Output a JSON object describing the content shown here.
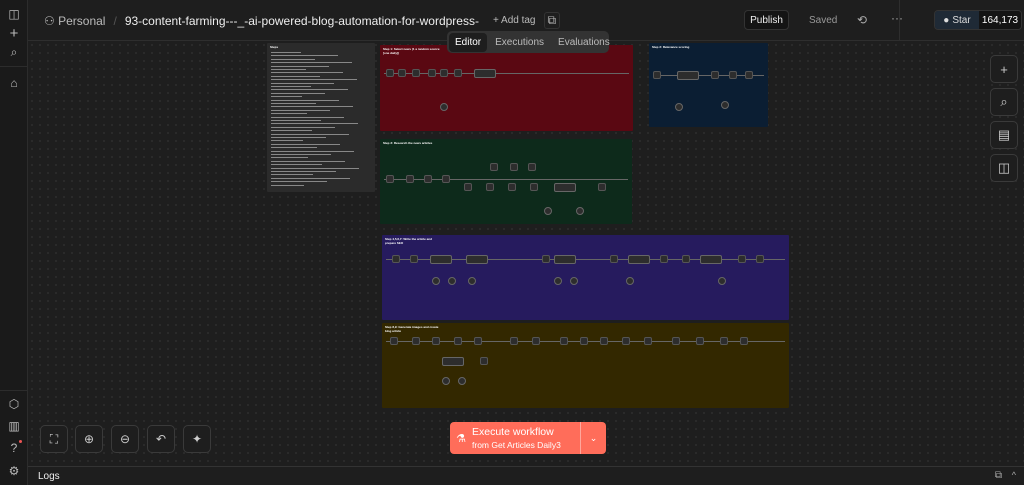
{
  "header": {
    "project": "Personal",
    "workflow_name": "93-content-farming---_-ai-powered-blog-automation-for-wordpress-",
    "add_tag": "+ Add tag",
    "publish": "Publish",
    "saved": "Saved",
    "github_star": "Star",
    "star_count": "164,173"
  },
  "tabs": [
    {
      "label": "Editor",
      "active": true
    },
    {
      "label": "Executions"
    },
    {
      "label": "Evaluations"
    }
  ],
  "groups": [
    {
      "title": "Step 1: Select news (1 a random source [one daily])",
      "color": "#5a0812"
    },
    {
      "title": "Step 2: Relevance scoring",
      "color": "#0b1e33"
    },
    {
      "title": "Step 3: Research the news articles",
      "color": "#0d2a1b"
    },
    {
      "title": "Step 4,5,6,7: Write the article and prepare SEO",
      "color": "#261b5e"
    },
    {
      "title": "Step 8,9: Generate images and create blog article",
      "color": "#332800"
    }
  ],
  "sticky_title": "Steps",
  "execute": {
    "label": "Execute workflow",
    "sub": "from Get Articles Daily3",
    "color": "#ff6d5a"
  },
  "logs": {
    "label": "Logs"
  }
}
